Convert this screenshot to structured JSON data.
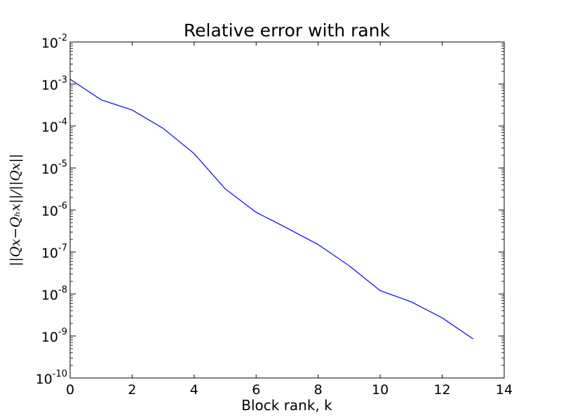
{
  "chart_data": {
    "type": "line",
    "title": "Relative error with rank",
    "xlabel": "Block rank, k",
    "ylabel": "||Qx−Qₕx||/||Qx||",
    "xlim": [
      0,
      14
    ],
    "ylim": [
      1e-10,
      0.01
    ],
    "yscale": "log",
    "grid": false,
    "x_ticks": [
      "0",
      "2",
      "4",
      "6",
      "8",
      "10",
      "12",
      "14"
    ],
    "y_ticks": [
      {
        "base": "10",
        "exp": "-10"
      },
      {
        "base": "10",
        "exp": "-9"
      },
      {
        "base": "10",
        "exp": "-8"
      },
      {
        "base": "10",
        "exp": "-7"
      },
      {
        "base": "10",
        "exp": "-6"
      },
      {
        "base": "10",
        "exp": "-5"
      },
      {
        "base": "10",
        "exp": "-4"
      },
      {
        "base": "10",
        "exp": "-3"
      },
      {
        "base": "10",
        "exp": "-2"
      }
    ],
    "series": [
      {
        "color": "#0000ff",
        "x": [
          0,
          1,
          2,
          3,
          4,
          5,
          6,
          7,
          8,
          9,
          10,
          11,
          12,
          13
        ],
        "y": [
          0.0013,
          0.00042,
          0.00024,
          8.8e-05,
          2.2e-05,
          3.2e-06,
          8.8e-07,
          3.7e-07,
          1.5e-07,
          4.7e-08,
          1.2e-08,
          6.5e-09,
          2.7e-09,
          8.5e-10
        ]
      }
    ]
  }
}
